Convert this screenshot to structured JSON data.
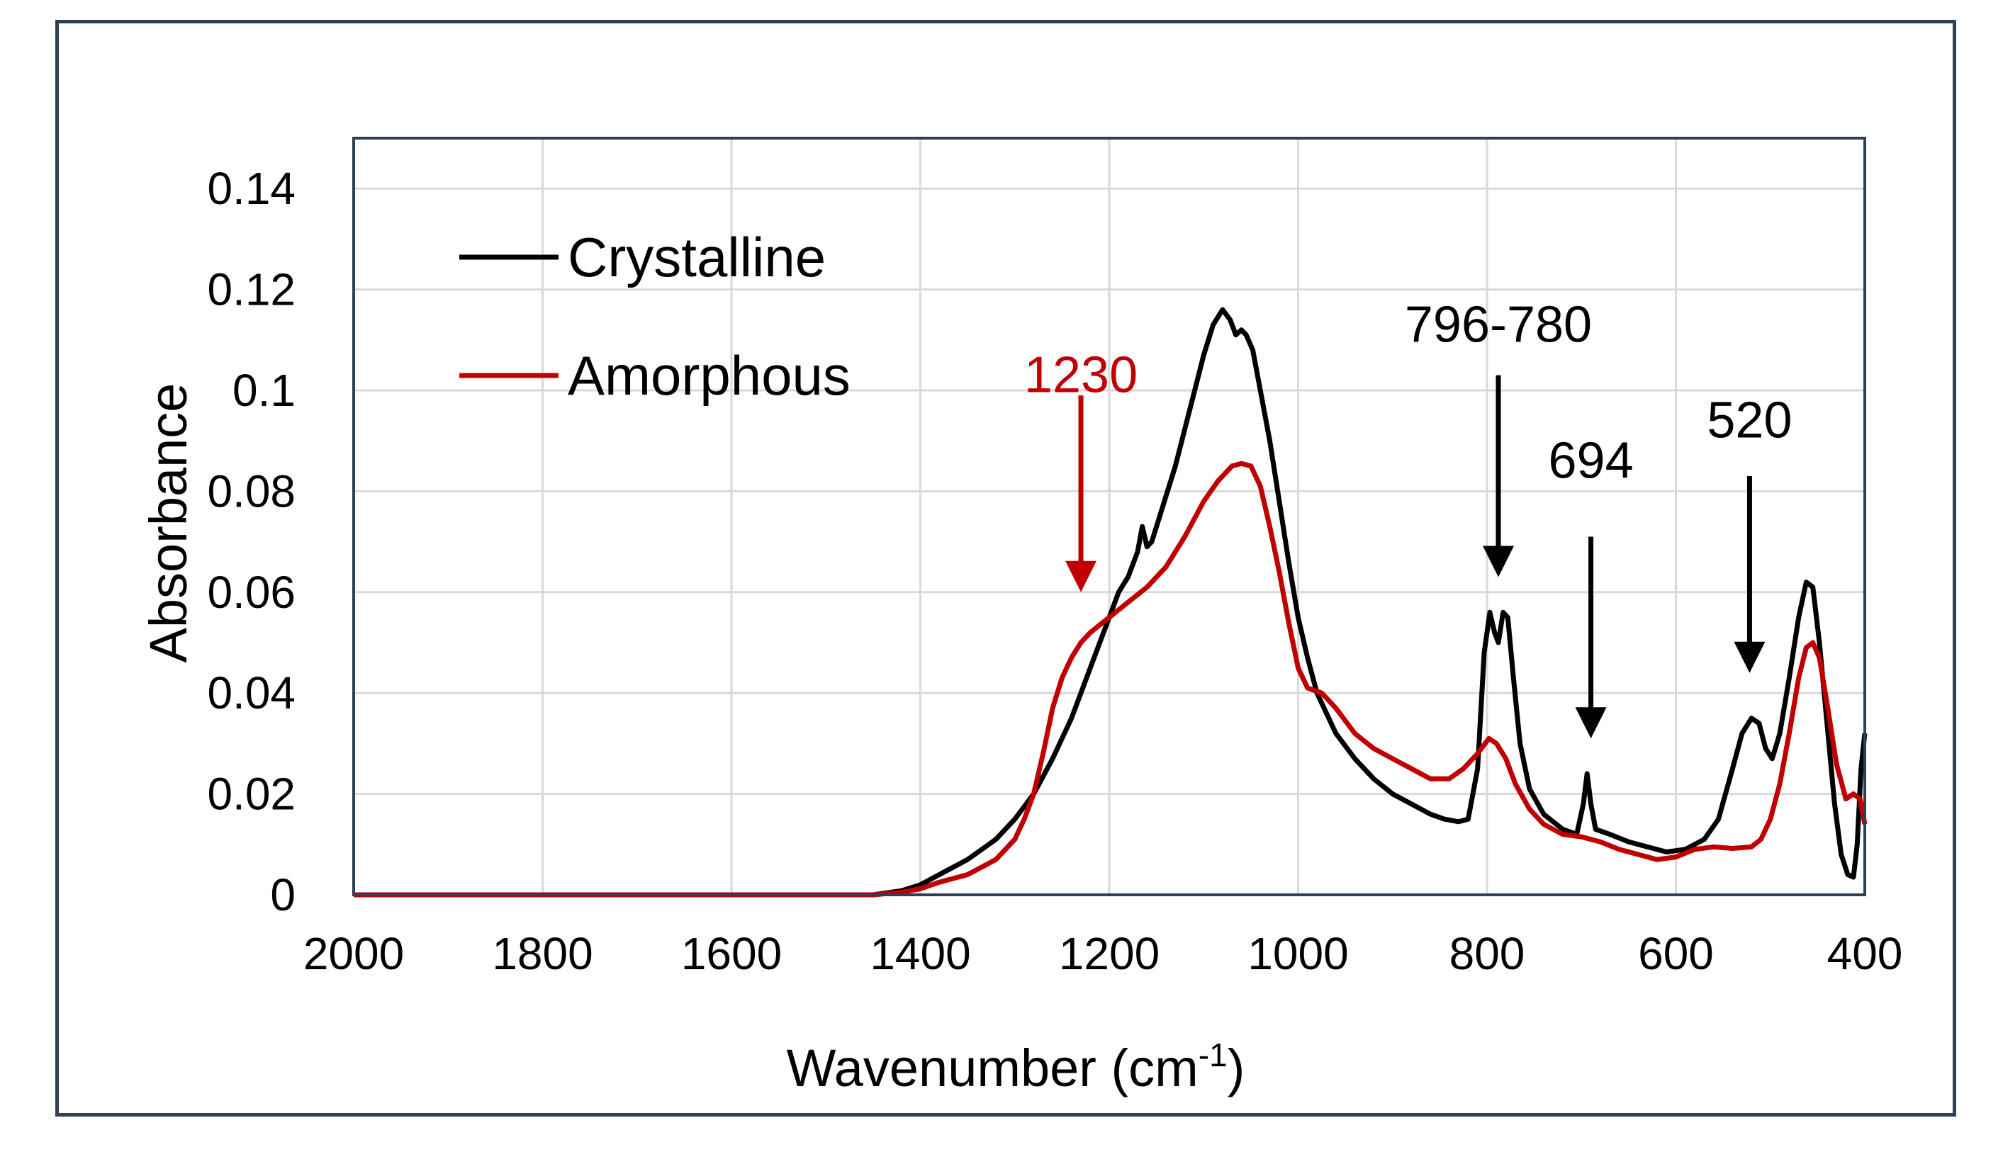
{
  "chart_data": {
    "type": "line",
    "xlabel": "Wavenumber (cm",
    "xlabel_sup": "-1",
    "xlabel_end": ")",
    "ylabel": "Absorbance",
    "xlim": [
      2000,
      400
    ],
    "ylim": [
      0,
      0.15
    ],
    "x_ticks": [
      {
        "value": 2000,
        "label": "2000"
      },
      {
        "value": 1800,
        "label": "1800"
      },
      {
        "value": 1600,
        "label": "1600"
      },
      {
        "value": 1400,
        "label": "1400"
      },
      {
        "value": 1200,
        "label": "1200"
      },
      {
        "value": 1000,
        "label": "1000"
      },
      {
        "value": 800,
        "label": "800"
      },
      {
        "value": 600,
        "label": "600"
      },
      {
        "value": 400,
        "label": "400"
      }
    ],
    "y_ticks": [
      {
        "value": 0,
        "label": "0"
      },
      {
        "value": 0.02,
        "label": "0.02"
      },
      {
        "value": 0.04,
        "label": "0.04"
      },
      {
        "value": 0.06,
        "label": "0.06"
      },
      {
        "value": 0.08,
        "label": "0.08"
      },
      {
        "value": 0.1,
        "label": "0.1"
      },
      {
        "value": 0.12,
        "label": "0.12"
      },
      {
        "value": 0.14,
        "label": "0.14"
      }
    ],
    "grid": true,
    "legend_position": "top-left",
    "series": [
      {
        "name": "Crystalline",
        "color": "#000000",
        "points": [
          [
            2000,
            0
          ],
          [
            1600,
            0
          ],
          [
            1450,
            0
          ],
          [
            1420,
            0.0008
          ],
          [
            1400,
            0.002
          ],
          [
            1380,
            0.004
          ],
          [
            1350,
            0.007
          ],
          [
            1320,
            0.011
          ],
          [
            1300,
            0.015
          ],
          [
            1280,
            0.02
          ],
          [
            1260,
            0.027
          ],
          [
            1240,
            0.035
          ],
          [
            1220,
            0.045
          ],
          [
            1200,
            0.055
          ],
          [
            1190,
            0.06
          ],
          [
            1180,
            0.063
          ],
          [
            1170,
            0.068
          ],
          [
            1165,
            0.073
          ],
          [
            1160,
            0.069
          ],
          [
            1155,
            0.07
          ],
          [
            1145,
            0.076
          ],
          [
            1130,
            0.085
          ],
          [
            1115,
            0.096
          ],
          [
            1100,
            0.107
          ],
          [
            1090,
            0.113
          ],
          [
            1080,
            0.116
          ],
          [
            1072,
            0.114
          ],
          [
            1066,
            0.111
          ],
          [
            1060,
            0.112
          ],
          [
            1055,
            0.111
          ],
          [
            1048,
            0.108
          ],
          [
            1040,
            0.1
          ],
          [
            1030,
            0.09
          ],
          [
            1020,
            0.078
          ],
          [
            1010,
            0.066
          ],
          [
            1000,
            0.055
          ],
          [
            990,
            0.047
          ],
          [
            980,
            0.04
          ],
          [
            960,
            0.032
          ],
          [
            940,
            0.027
          ],
          [
            920,
            0.023
          ],
          [
            900,
            0.02
          ],
          [
            880,
            0.018
          ],
          [
            860,
            0.016
          ],
          [
            845,
            0.015
          ],
          [
            830,
            0.0145
          ],
          [
            820,
            0.015
          ],
          [
            810,
            0.025
          ],
          [
            803,
            0.048
          ],
          [
            797,
            0.056
          ],
          [
            792,
            0.052
          ],
          [
            788,
            0.05
          ],
          [
            783,
            0.056
          ],
          [
            778,
            0.055
          ],
          [
            772,
            0.043
          ],
          [
            765,
            0.03
          ],
          [
            755,
            0.021
          ],
          [
            740,
            0.016
          ],
          [
            720,
            0.013
          ],
          [
            705,
            0.012
          ],
          [
            698,
            0.018
          ],
          [
            694,
            0.024
          ],
          [
            690,
            0.018
          ],
          [
            685,
            0.013
          ],
          [
            670,
            0.012
          ],
          [
            650,
            0.0105
          ],
          [
            630,
            0.0095
          ],
          [
            610,
            0.0085
          ],
          [
            590,
            0.009
          ],
          [
            570,
            0.011
          ],
          [
            555,
            0.015
          ],
          [
            540,
            0.025
          ],
          [
            530,
            0.032
          ],
          [
            520,
            0.035
          ],
          [
            512,
            0.034
          ],
          [
            505,
            0.029
          ],
          [
            498,
            0.027
          ],
          [
            490,
            0.032
          ],
          [
            480,
            0.043
          ],
          [
            470,
            0.055
          ],
          [
            462,
            0.062
          ],
          [
            455,
            0.061
          ],
          [
            448,
            0.05
          ],
          [
            440,
            0.034
          ],
          [
            432,
            0.018
          ],
          [
            425,
            0.008
          ],
          [
            418,
            0.004
          ],
          [
            412,
            0.0035
          ],
          [
            408,
            0.01
          ],
          [
            404,
            0.025
          ],
          [
            400,
            0.032
          ]
        ]
      },
      {
        "name": "Amorphous",
        "color": "#c00000",
        "points": [
          [
            2000,
            0
          ],
          [
            1600,
            0
          ],
          [
            1450,
            0
          ],
          [
            1420,
            0.0005
          ],
          [
            1400,
            0.0012
          ],
          [
            1380,
            0.0025
          ],
          [
            1350,
            0.004
          ],
          [
            1320,
            0.007
          ],
          [
            1300,
            0.011
          ],
          [
            1290,
            0.015
          ],
          [
            1280,
            0.02
          ],
          [
            1270,
            0.028
          ],
          [
            1260,
            0.037
          ],
          [
            1250,
            0.043
          ],
          [
            1240,
            0.047
          ],
          [
            1230,
            0.05
          ],
          [
            1220,
            0.052
          ],
          [
            1200,
            0.055
          ],
          [
            1180,
            0.058
          ],
          [
            1160,
            0.061
          ],
          [
            1140,
            0.065
          ],
          [
            1120,
            0.071
          ],
          [
            1100,
            0.078
          ],
          [
            1085,
            0.082
          ],
          [
            1070,
            0.085
          ],
          [
            1060,
            0.0855
          ],
          [
            1050,
            0.085
          ],
          [
            1040,
            0.081
          ],
          [
            1030,
            0.073
          ],
          [
            1020,
            0.064
          ],
          [
            1010,
            0.054
          ],
          [
            1000,
            0.045
          ],
          [
            990,
            0.041
          ],
          [
            975,
            0.04
          ],
          [
            960,
            0.037
          ],
          [
            940,
            0.032
          ],
          [
            920,
            0.029
          ],
          [
            900,
            0.027
          ],
          [
            880,
            0.025
          ],
          [
            860,
            0.023
          ],
          [
            840,
            0.023
          ],
          [
            825,
            0.025
          ],
          [
            810,
            0.028
          ],
          [
            798,
            0.031
          ],
          [
            790,
            0.03
          ],
          [
            780,
            0.027
          ],
          [
            770,
            0.022
          ],
          [
            755,
            0.017
          ],
          [
            740,
            0.014
          ],
          [
            720,
            0.012
          ],
          [
            700,
            0.0115
          ],
          [
            680,
            0.0105
          ],
          [
            660,
            0.009
          ],
          [
            640,
            0.008
          ],
          [
            620,
            0.007
          ],
          [
            600,
            0.0075
          ],
          [
            580,
            0.009
          ],
          [
            560,
            0.0095
          ],
          [
            540,
            0.0092
          ],
          [
            520,
            0.0095
          ],
          [
            510,
            0.011
          ],
          [
            500,
            0.015
          ],
          [
            490,
            0.022
          ],
          [
            480,
            0.032
          ],
          [
            470,
            0.043
          ],
          [
            462,
            0.049
          ],
          [
            455,
            0.05
          ],
          [
            448,
            0.047
          ],
          [
            440,
            0.038
          ],
          [
            430,
            0.026
          ],
          [
            420,
            0.019
          ],
          [
            412,
            0.02
          ],
          [
            405,
            0.019
          ],
          [
            400,
            0.014
          ]
        ]
      }
    ],
    "annotations": [
      {
        "text": "1230",
        "x": 1230,
        "y_from": 0.099,
        "y_to": 0.06,
        "color": "#c00000",
        "text_y": 0.103
      },
      {
        "text": "796-780",
        "x": 788,
        "y_from": 0.103,
        "y_to": 0.063,
        "color": "#000000",
        "text_y": 0.113
      },
      {
        "text": "694",
        "x": 690,
        "y_from": 0.071,
        "y_to": 0.031,
        "color": "#000000",
        "text_y": 0.086
      },
      {
        "text": "520",
        "x": 522,
        "y_from": 0.083,
        "y_to": 0.044,
        "color": "#000000",
        "text_y": 0.094
      }
    ]
  }
}
